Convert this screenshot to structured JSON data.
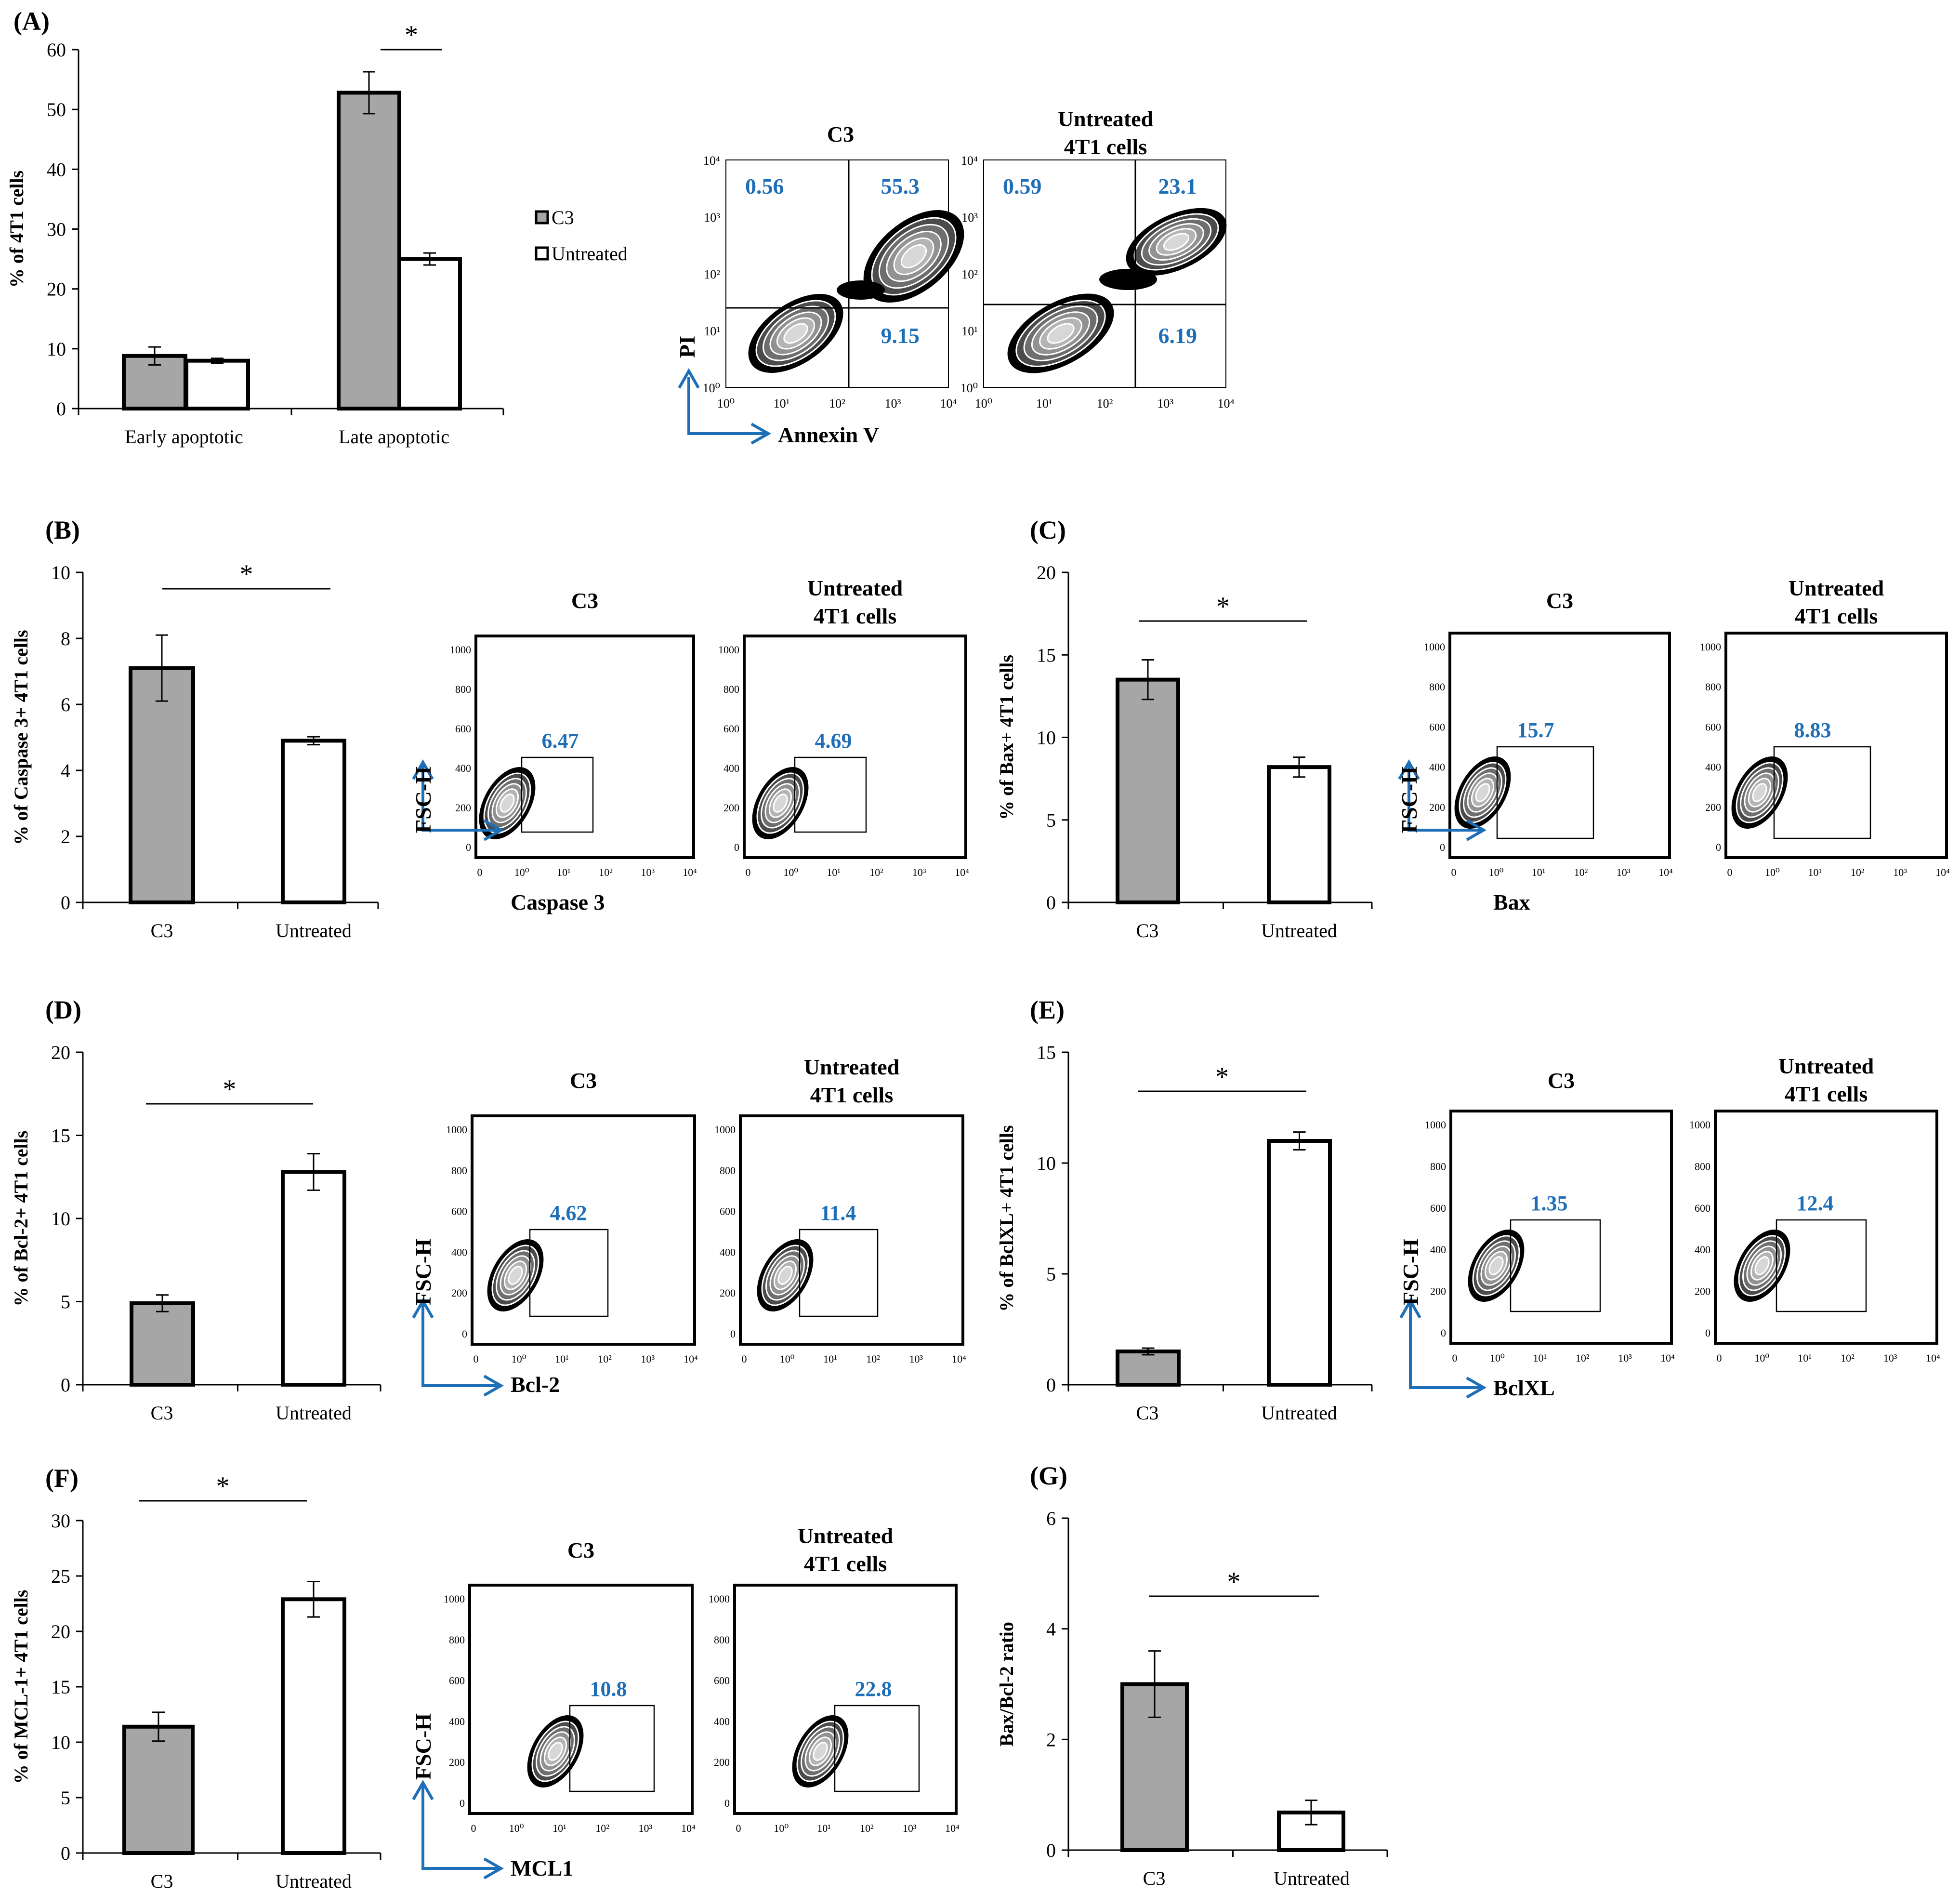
{
  "colors": {
    "c3": "#a6a6a6",
    "untreated": "#ffffff",
    "accent": "#1f6fb8"
  },
  "significance_marker": "*",
  "chart_data": [
    {
      "id": "A",
      "type": "bar",
      "label": "(A)",
      "title": "",
      "ylabel": "% of 4T1 cells",
      "ylim": [
        0,
        60
      ],
      "yticks": [
        0,
        10,
        20,
        30,
        40,
        50,
        60
      ],
      "categories": [
        "Early apoptotic",
        "Late apoptotic"
      ],
      "series": [
        {
          "name": "C3",
          "values": [
            8.8,
            52.8
          ],
          "errors": [
            1.5,
            3.5
          ]
        },
        {
          "name": "Untreated",
          "values": [
            8.0,
            25.0
          ],
          "errors": [
            0.4,
            1.0
          ]
        }
      ],
      "legend": [
        "C3",
        "Untreated"
      ],
      "significant_categories": [
        1
      ]
    },
    {
      "id": "B",
      "type": "bar",
      "label": "(B)",
      "ylabel": "% of Caspase 3+ 4T1 cells",
      "ylim": [
        0,
        10
      ],
      "yticks": [
        0,
        2,
        4,
        6,
        8,
        10
      ],
      "categories": [
        "C3",
        "Untreated"
      ],
      "values": [
        7.1,
        4.9
      ],
      "errors": [
        1.0,
        0.12
      ]
    },
    {
      "id": "C",
      "type": "bar",
      "label": "(C)",
      "ylabel": "% of Bax+ 4T1 cells",
      "ylim": [
        0,
        20
      ],
      "yticks": [
        0,
        5,
        10,
        15,
        20
      ],
      "categories": [
        "C3",
        "Untreated"
      ],
      "values": [
        13.5,
        8.2
      ],
      "errors": [
        1.2,
        0.6
      ]
    },
    {
      "id": "D",
      "type": "bar",
      "label": "(D)",
      "ylabel": "% of Bcl-2+ 4T1 cells",
      "ylim": [
        0,
        20
      ],
      "yticks": [
        0,
        5,
        10,
        15,
        20
      ],
      "categories": [
        "C3",
        "Untreated"
      ],
      "values": [
        4.9,
        12.8
      ],
      "errors": [
        0.5,
        1.1
      ]
    },
    {
      "id": "E",
      "type": "bar",
      "label": "(E)",
      "ylabel": "% of BclXL+ 4T1 cells",
      "ylim": [
        0,
        15
      ],
      "yticks": [
        0,
        5,
        10,
        15
      ],
      "categories": [
        "C3",
        "Untreated"
      ],
      "values": [
        1.5,
        11.0
      ],
      "errors": [
        0.15,
        0.4
      ]
    },
    {
      "id": "F",
      "type": "bar",
      "label": "(F)",
      "ylabel": "% of MCL-1+ 4T1 cells",
      "ylim": [
        0,
        30
      ],
      "yticks": [
        0,
        5,
        10,
        15,
        20,
        25,
        30
      ],
      "categories": [
        "C3",
        "Untreated"
      ],
      "values": [
        11.4,
        22.9
      ],
      "errors": [
        1.3,
        1.6
      ]
    },
    {
      "id": "G",
      "type": "bar",
      "label": "(G)",
      "ylabel": "Bax/Bcl-2 ratio",
      "ylim": [
        0,
        6
      ],
      "yticks": [
        0,
        2,
        4,
        6
      ],
      "categories": [
        "C3",
        "Untreated"
      ],
      "values": [
        3.0,
        0.68
      ],
      "errors": [
        0.6,
        0.22
      ]
    }
  ],
  "flow_plots": [
    {
      "panel": "A",
      "type": "quadrant",
      "x_axis": "Annexin V",
      "y_axis": "PI",
      "samples": [
        {
          "title": [
            "C3"
          ],
          "quadrants": {
            "upper_left": "0.56",
            "upper_right": "55.3",
            "lower_right": "9.15"
          }
        },
        {
          "title": [
            "Untreated",
            "4T1 cells"
          ],
          "quadrants": {
            "upper_left": "0.59",
            "upper_right": "23.1",
            "lower_right": "6.19"
          }
        }
      ],
      "x_ticks": [
        "10⁰",
        "10¹",
        "10²",
        "10³",
        "10⁴"
      ],
      "y_ticks": [
        "10⁰",
        "10¹",
        "10²",
        "10³",
        "10⁴"
      ]
    },
    {
      "panel": "B",
      "type": "gate",
      "x_axis": "Caspase 3",
      "y_axis": "FSC-H",
      "samples": [
        {
          "title": [
            "C3"
          ],
          "gate_value": "6.47"
        },
        {
          "title": [
            "Untreated",
            "4T1 cells"
          ],
          "gate_value": "4.69"
        }
      ]
    },
    {
      "panel": "C",
      "type": "gate",
      "x_axis": "Bax",
      "y_axis": "FSC-H",
      "samples": [
        {
          "title": [
            "C3"
          ],
          "gate_value": "15.7"
        },
        {
          "title": [
            "Untreated",
            "4T1 cells"
          ],
          "gate_value": "8.83"
        }
      ]
    },
    {
      "panel": "D",
      "type": "gate",
      "x_axis": "Bcl-2",
      "y_axis": "FSC-H",
      "samples": [
        {
          "title": [
            "C3"
          ],
          "gate_value": "4.62"
        },
        {
          "title": [
            "Untreated",
            "4T1 cells"
          ],
          "gate_value": "11.4"
        }
      ]
    },
    {
      "panel": "E",
      "type": "gate",
      "x_axis": "BclXL",
      "y_axis": "FSC-H",
      "samples": [
        {
          "title": [
            "C3"
          ],
          "gate_value": "1.35"
        },
        {
          "title": [
            "Untreated",
            "4T1 cells"
          ],
          "gate_value": "12.4"
        }
      ]
    },
    {
      "panel": "F",
      "type": "gate",
      "x_axis": "MCL1",
      "y_axis": "FSC-H",
      "samples": [
        {
          "title": [
            "C3"
          ],
          "gate_value": "10.8"
        },
        {
          "title": [
            "Untreated",
            "4T1 cells"
          ],
          "gate_value": "22.8"
        }
      ]
    }
  ],
  "fsc_y_ticks": [
    "0",
    "200",
    "400",
    "600",
    "800",
    "1000"
  ],
  "fsc_x_ticks": [
    "0",
    "10⁰",
    "10¹",
    "10²",
    "10³",
    "10⁴"
  ]
}
